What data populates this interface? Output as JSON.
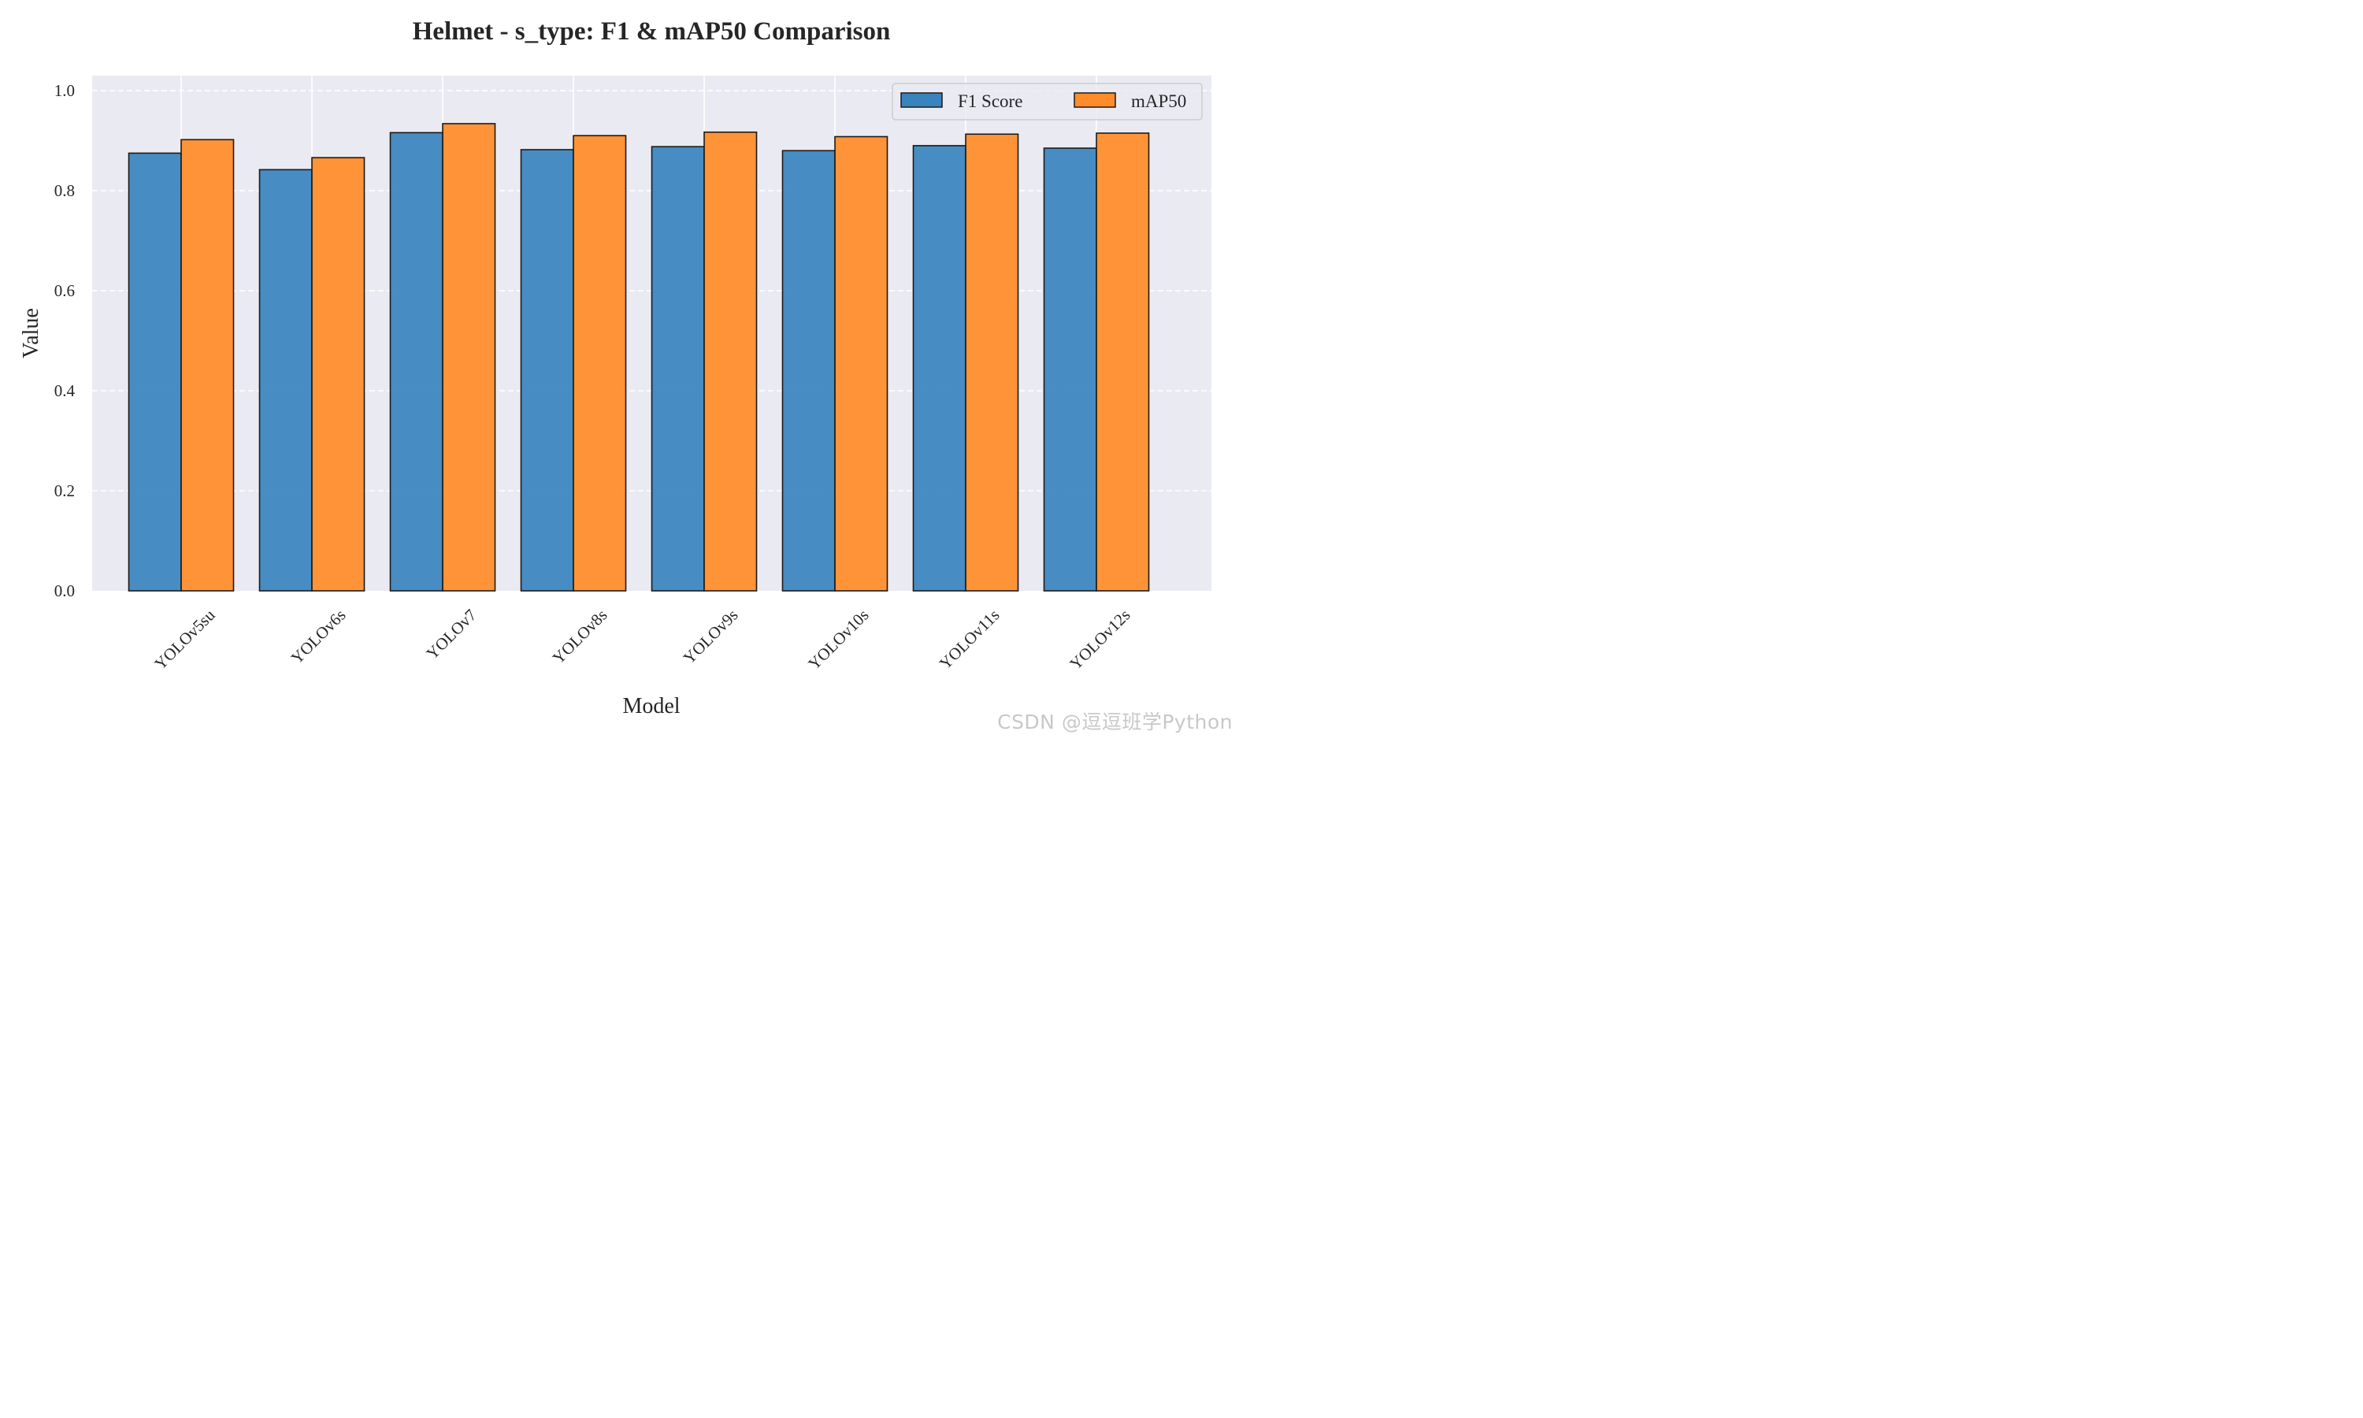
{
  "chart_data": {
    "type": "bar",
    "title": "Helmet - s_type: F1 & mAP50 Comparison",
    "xlabel": "Model",
    "ylabel": "Value",
    "ylim": [
      0,
      1.03
    ],
    "yticks": [
      0.0,
      0.2,
      0.4,
      0.6,
      0.8,
      1.0
    ],
    "ytick_labels": [
      "0.0",
      "0.2",
      "0.4",
      "0.6",
      "0.8",
      "1.0"
    ],
    "grid": true,
    "legend_position": "top-right",
    "categories": [
      "YOLOv5su",
      "YOLOv6s",
      "YOLOv7",
      "YOLOv8s",
      "YOLOv9s",
      "YOLOv10s",
      "YOLOv11s",
      "YOLOv12s"
    ],
    "series": [
      {
        "name": "F1 Score",
        "color": "#3a84be",
        "values": [
          0.875,
          0.842,
          0.916,
          0.882,
          0.888,
          0.88,
          0.89,
          0.885
        ]
      },
      {
        "name": "mAP50",
        "color": "#ff8c2a",
        "values": [
          0.902,
          0.866,
          0.934,
          0.91,
          0.917,
          0.908,
          0.913,
          0.915
        ]
      }
    ]
  },
  "colors": {
    "plot_background": "#eaeaf2",
    "grid": "#ffffff",
    "bar_edge": "#1a1a1a"
  },
  "watermark": "CSDN @逗逗班学Python"
}
